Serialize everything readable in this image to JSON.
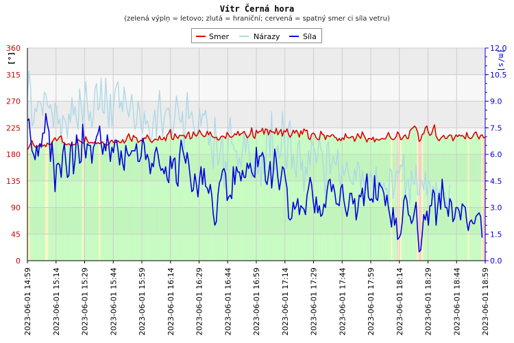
{
  "chart_data": {
    "type": "line",
    "title": "Vítr Černá hora",
    "subtitle": "(zelená výplņ = letovo; zlutá = hraniční; cervená = spatný smer ci síla vetru)",
    "ylabel_left": "[°]",
    "ylabel_right": "[m/s]",
    "ylim_left": [
      0,
      360
    ],
    "ylim_right": [
      0,
      12
    ],
    "yticks_left": [
      "0",
      "45",
      "90",
      "135",
      "180",
      "225",
      "270",
      "315",
      "360"
    ],
    "yticks_right": [
      "0.0",
      "1.5",
      "3.0",
      "4.5",
      "6.0",
      "7.5",
      "9.0",
      "10.5",
      "12.0"
    ],
    "xticks": [
      "2023-06-01 14:59",
      "2023-06-01 15:14",
      "2023-06-01 15:29",
      "2023-06-01 15:44",
      "2023-06-01 15:59",
      "2023-06-01 16:14",
      "2023-06-01 16:29",
      "2023-06-01 16:44",
      "2023-06-01 16:59",
      "2023-06-01 17:14",
      "2023-06-01 17:29",
      "2023-06-01 17:44",
      "2023-06-01 17:59",
      "2023-06-01 18:14",
      "2023-06-01 18:29",
      "2023-06-01 18:44",
      "2023-06-01 18:59"
    ],
    "grid": true,
    "legend_position": "top-center",
    "series": [
      {
        "name": "Smer",
        "color": "#dd0000",
        "axis": "left",
        "values": [
          188,
          192,
          198,
          203,
          196,
          193,
          190,
          194,
          196,
          198,
          194,
          196,
          193,
          199,
          197,
          196,
          200,
          205,
          208,
          203,
          206,
          210,
          211,
          200,
          200,
          196,
          197,
          198,
          195,
          197,
          196,
          197,
          201,
          205,
          203,
          201,
          199,
          200,
          210,
          203,
          199,
          200,
          200,
          199,
          201,
          198,
          200,
          198,
          200,
          201,
          196,
          197,
          196,
          196,
          202,
          204,
          200,
          201,
          200,
          203,
          200,
          200,
          205,
          199,
          203,
          210,
          215,
          206,
          202,
          212,
          209,
          208,
          200,
          202,
          204,
          201,
          208,
          207,
          213,
          208,
          203,
          200,
          203,
          206,
          205,
          204,
          211,
          205,
          205,
          209,
          203,
          213,
          216,
          222,
          206,
          205,
          215,
          210,
          207,
          212,
          212,
          212,
          212,
          207,
          214,
          218,
          206,
          208,
          218,
          213,
          211,
          215,
          221,
          216,
          212,
          210,
          211,
          219,
          213,
          218,
          211,
          209,
          208,
          209,
          204,
          205,
          210,
          211,
          210,
          207,
          217,
          213,
          209,
          209,
          211,
          215,
          213,
          219,
          212,
          215,
          216,
          219,
          214,
          208,
          210,
          214,
          225,
          210,
          207,
          221,
          216,
          219,
          219,
          224,
          214,
          223,
          222,
          213,
          221,
          218,
          218,
          215,
          224,
          213,
          218,
          222,
          211,
          220,
          218,
          223,
          214,
          209,
          213,
          221,
          216,
          221,
          217,
          209,
          220,
          214,
          223,
          220,
          221,
          207,
          205,
          214,
          216,
          214,
          208,
          205,
          205,
          219,
          214,
          213,
          205,
          212,
          211,
          210,
          213,
          213,
          209,
          208,
          203,
          207,
          203,
          208,
          205,
          215,
          209,
          208,
          208,
          210,
          210,
          202,
          208,
          215,
          210,
          207,
          218,
          212,
          207,
          201,
          207,
          207,
          205,
          209,
          201,
          206,
          205,
          204,
          206,
          207,
          206,
          206,
          211,
          217,
          210,
          206,
          205,
          206,
          210,
          218,
          214,
          205,
          206,
          211,
          213,
          207,
          207,
          220,
          223,
          225,
          228,
          225,
          218,
          202,
          204,
          214,
          215,
          225,
          228,
          217,
          212,
          214,
          223,
          230,
          211,
          206,
          203,
          207,
          210,
          212,
          207,
          207,
          211,
          213,
          212,
          203,
          208,
          213,
          210,
          213,
          211,
          212,
          210,
          206,
          217,
          209,
          207,
          207,
          211,
          216,
          218,
          211,
          206,
          212,
          213,
          208,
          209
        ]
      },
      {
        "name": "Nárazy",
        "color": "#add8e6",
        "axis": "right",
        "values": [
          9.3,
          10.7,
          9.9,
          7.6,
          7.8,
          8.6,
          8.4,
          9.0,
          9.0,
          8.8,
          8.2,
          9.5,
          9.4,
          8.8,
          8.6,
          8.8,
          8.3,
          7.5,
          8.9,
          8.7,
          7.7,
          8.0,
          6.6,
          8.2,
          8.0,
          7.8,
          6.9,
          8.3,
          7.8,
          9.2,
          8.2,
          8.7,
          7.9,
          7.4,
          9.7,
          8.7,
          7.7,
          8.9,
          10.1,
          8.8,
          7.9,
          8.4,
          7.5,
          8.2,
          9.7,
          10.0,
          8.5,
          8.7,
          10.3,
          8.4,
          8.3,
          10.3,
          8.7,
          7.5,
          9.4,
          7.6,
          8.5,
          9.6,
          9.9,
          10.1,
          8.6,
          9.0,
          8.4,
          9.8,
          9.0,
          8.5,
          8.1,
          8.8,
          9.4,
          8.3,
          7.4,
          7.7,
          9.0,
          8.5,
          7.5,
          7.2,
          8.4,
          7.7,
          7.9,
          7.6,
          6.8,
          6.9,
          8.0,
          8.5,
          6.9,
          8.5,
          9.6,
          8.2,
          7.0,
          8.0,
          8.4,
          8.6,
          8.6,
          7.9,
          7.1,
          7.4,
          8.2,
          9.3,
          8.7,
          8.0,
          7.8,
          8.4,
          6.3,
          7.8,
          9.5,
          8.0,
          8.2,
          8.4,
          7.7,
          7.3,
          6.9,
          7.3,
          8.6,
          7.6,
          8.3,
          8.2,
          8.5,
          7.8,
          6.5,
          7.0,
          6.1,
          5.2,
          8.1,
          6.8,
          5.4,
          5.7,
          6.6,
          7.0,
          4.1,
          5.6,
          5.1,
          7.3,
          8.1,
          6.6,
          6.5,
          6.2,
          6.2,
          5.3,
          5.8,
          5.3,
          6.2,
          7.2,
          6.1,
          7.1,
          6.3,
          5.7,
          4.7,
          4.8,
          5.8,
          5.8,
          4.9,
          5.9,
          4.2,
          6.2,
          4.9,
          5.4,
          7.4,
          7.4,
          5.8,
          8.4,
          5.4,
          5.1,
          5.8,
          6.5,
          5.8,
          6.0,
          8.4,
          7.3,
          5.6,
          5.2,
          7.6,
          7.9,
          5.2,
          6.0,
          5.2,
          4.7,
          6.5,
          6.8,
          5.1,
          5.7,
          3.9,
          5.3,
          4.8,
          6.2,
          5.4,
          6.8,
          6.5,
          6.2,
          5.5,
          6.0,
          7.0,
          6.3,
          6.1,
          4.7,
          3.5,
          6.5,
          6.7,
          4.9,
          5.4,
          5.9,
          5.5,
          5.4,
          6.3,
          4.6,
          4.1,
          5.4,
          4.8,
          5.1,
          5.6,
          4.9,
          4.6,
          4.4,
          4.3,
          5.2,
          4.6,
          5.6,
          5.3,
          4.1,
          5.1,
          4.3,
          4.5,
          4.0,
          4.4,
          5.0,
          4.8,
          4.1,
          4.2,
          5.3,
          4.1,
          4.4,
          4.4,
          4.1,
          4.4,
          4.0,
          4.1,
          3.3,
          5.2,
          5.1,
          3.5,
          4.1,
          5.0,
          5.1,
          4.9,
          5.4,
          5.3,
          6.0,
          3.6,
          4.5,
          4.6,
          3.2,
          5.1,
          4.4,
          4.3,
          5.4,
          3.7,
          3.7,
          4.6,
          4.4,
          4.0,
          5.0,
          3.7,
          4.5,
          4.4,
          3.4,
          4.2,
          3.7,
          4.4,
          3.4,
          4.0,
          3.7,
          4.4,
          3.8,
          3.8,
          3.0,
          3.3,
          4.3
        ]
      },
      {
        "name": "Síla",
        "color": "#0000dd",
        "axis": "right",
        "values": [
          7.9,
          8.0,
          7.0,
          6.2,
          6.0,
          5.7,
          6.5,
          5.9,
          6.6,
          6.4,
          7.2,
          7.2,
          8.3,
          7.7,
          7.3,
          5.6,
          6.7,
          5.6,
          3.9,
          5.4,
          5.5,
          5.4,
          4.7,
          6.1,
          6.6,
          5.6,
          4.7,
          4.8,
          6.4,
          6.7,
          4.9,
          5.7,
          7.1,
          6.5,
          5.5,
          5.6,
          7.7,
          6.5,
          5.8,
          6.6,
          6.5,
          6.5,
          5.5,
          6.4,
          6.6,
          7.0,
          7.2,
          7.6,
          6.6,
          6.0,
          6.6,
          6.2,
          7.1,
          6.5,
          5.6,
          6.4,
          6.1,
          6.8,
          6.8,
          6.2,
          5.4,
          6.2,
          5.5,
          5.1,
          6.5,
          6.1,
          5.9,
          6.0,
          6.2,
          6.2,
          6.2,
          6.6,
          5.6,
          5.6,
          5.9,
          6.9,
          6.6,
          5.7,
          6.0,
          5.7,
          4.9,
          5.5,
          5.3,
          6.1,
          6.4,
          6.0,
          5.4,
          5.1,
          5.2,
          4.9,
          5.3,
          4.6,
          4.4,
          5.9,
          5.2,
          5.7,
          5.8,
          4.4,
          4.2,
          5.9,
          6.8,
          6.3,
          5.9,
          5.5,
          6.1,
          5.5,
          4.7,
          3.9,
          4.0,
          4.9,
          4.3,
          3.6,
          4.6,
          5.3,
          4.3,
          5.2,
          4.2,
          4.1,
          3.8,
          4.3,
          3.7,
          2.6,
          2.0,
          2.2,
          3.7,
          4.4,
          4.6,
          5.1,
          5.2,
          4.9,
          3.4,
          3.6,
          3.7,
          3.5,
          5.3,
          4.3,
          5.3,
          5.0,
          5.0,
          4.5,
          5.1,
          4.7,
          4.7,
          5.5,
          5.2,
          5.5,
          5.0,
          4.8,
          4.7,
          6.4,
          5.3,
          5.9,
          5.9,
          6.1,
          5.8,
          4.5,
          4.3,
          4.9,
          5.6,
          4.1,
          5.0,
          6.3,
          5.7,
          4.7,
          4.0,
          4.6,
          5.3,
          5.2,
          4.6,
          4.1,
          2.4,
          2.3,
          2.4,
          3.3,
          2.9,
          3.1,
          3.5,
          2.6,
          3.1,
          3.0,
          2.9,
          2.6,
          3.7,
          4.1,
          4.7,
          4.3,
          3.4,
          2.7,
          3.6,
          2.7,
          3.1,
          2.5,
          2.6,
          3.2,
          3.0,
          3.9,
          4.5,
          4.6,
          3.9,
          4.3,
          3.9,
          3.2,
          3.2,
          3.1,
          4.1,
          4.3,
          3.4,
          2.9,
          2.5,
          3.0,
          3.8,
          3.8,
          3.2,
          3.5,
          2.3,
          2.8,
          3.7,
          3.6,
          4.1,
          3.1,
          4.2,
          4.9,
          3.6,
          3.4,
          3.5,
          3.3,
          4.8,
          3.5,
          3.4,
          4.4,
          4.2,
          4.1,
          3.8,
          3.1,
          3.7,
          3.0,
          2.5,
          1.9,
          3.0,
          2.0,
          2.4,
          1.2,
          1.3,
          1.5,
          2.2,
          3.4,
          3.7,
          3.4,
          2.6,
          2.5,
          2.1,
          2.3,
          2.8,
          3.3,
          1.7,
          0.5,
          0.6,
          1.5,
          2.6,
          2.3,
          2.8,
          2.0,
          3.1,
          3.1,
          4.0,
          3.8,
          2.0,
          3.0,
          3.8,
          2.9,
          4.6,
          3.6,
          3.0,
          3.0,
          2.5,
          3.5,
          3.3,
          2.2,
          2.4,
          3.0,
          3.0,
          2.8,
          2.3,
          3.2,
          3.1,
          3.0,
          2.2,
          1.7,
          2.2,
          2.3,
          2.1,
          2.1,
          2.5,
          2.6,
          2.7,
          2.5,
          1.3
        ]
      }
    ]
  }
}
